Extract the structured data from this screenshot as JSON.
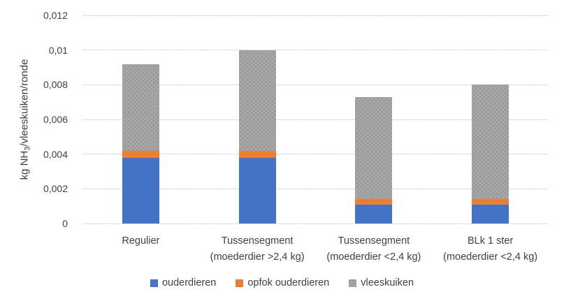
{
  "chart_data": {
    "type": "bar",
    "stacked": true,
    "title": "",
    "categories": [
      "Regulier",
      "Tussensegment (moederdier >2,4 kg)",
      "Tussensegment (moederdier <2,4 kg)",
      "BLk 1 ster (moederdier <2,4 kg)"
    ],
    "category_lines": [
      [
        "Regulier"
      ],
      [
        "Tussensegment",
        "(moederdier >2,4 kg)"
      ],
      [
        "Tussensegment",
        "(moederdier <2,4 kg)"
      ],
      [
        "BLk 1 ster",
        "(moederdier <2,4 kg)"
      ]
    ],
    "series": [
      {
        "name": "ouderdieren",
        "color": "#4472C4",
        "pattern": "solid",
        "values": [
          0.0038,
          0.0038,
          0.0011,
          0.0011
        ]
      },
      {
        "name": "opfok ouderdieren",
        "color": "#ED7D31",
        "pattern": "solid",
        "values": [
          0.0004,
          0.0004,
          0.0003,
          0.0003
        ]
      },
      {
        "name": "vleeskuiken",
        "color": "#A6A6A6",
        "pattern": "dotted",
        "values": [
          0.005,
          0.0058,
          0.0059,
          0.0066
        ]
      }
    ],
    "totals": [
      0.0092,
      0.01,
      0.0073,
      0.008
    ],
    "xlabel": "",
    "ylabel": "kg NH3/vleeskuiken/ronde",
    "ylabel_parts": {
      "prefix": "kg NH",
      "subscript": "3",
      "suffix": "/vleeskuiken/ronde"
    },
    "ylim": [
      0,
      0.012
    ],
    "yticks": [
      0,
      0.002,
      0.004,
      0.006,
      0.008,
      0.01,
      0.012
    ],
    "ytick_labels": [
      "0",
      "0,002",
      "0,004",
      "0,006",
      "0,008",
      "0,01",
      "0,012"
    ],
    "decimal_separator": ",",
    "grid": true,
    "legend_position": "bottom",
    "colors": {
      "ouderdieren": "#4472C4",
      "opfok_ouderdieren": "#ED7D31",
      "vleeskuiken": "#A6A6A6",
      "vleeskuiken_dot": "#8C8C8C",
      "gridline": "#D9D9D9",
      "text": "#404040",
      "background": "#FFFFFF"
    }
  }
}
